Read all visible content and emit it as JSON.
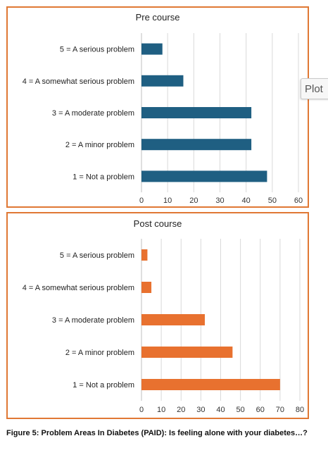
{
  "plot_tab_label": "Plot",
  "caption": "Figure 5: Problem Areas In Diabetes (PAID): Is feeling alone with your diabetes…?",
  "chart_data": [
    {
      "type": "bar",
      "orientation": "horizontal",
      "title": "Pre course",
      "categories": [
        "5 = A serious problem",
        "4 = A somewhat serious problem",
        "3 = A moderate problem",
        "2 = A minor problem",
        "1 = Not a problem"
      ],
      "values": [
        8,
        16,
        42,
        42,
        48
      ],
      "xlim": [
        0,
        60
      ],
      "xticks": [
        0,
        10,
        20,
        30,
        40,
        50,
        60
      ],
      "color": "#1f5f82",
      "grid": "vertical"
    },
    {
      "type": "bar",
      "orientation": "horizontal",
      "title": "Post course",
      "categories": [
        "5 = A serious problem",
        "4 = A somewhat serious problem",
        "3 = A moderate problem",
        "2 = A minor problem",
        "1 = Not a problem"
      ],
      "values": [
        3,
        5,
        32,
        46,
        70
      ],
      "xlim": [
        0,
        80
      ],
      "xticks": [
        0,
        10,
        20,
        30,
        40,
        50,
        60,
        70,
        80
      ],
      "color": "#e8712f",
      "grid": "vertical"
    }
  ]
}
